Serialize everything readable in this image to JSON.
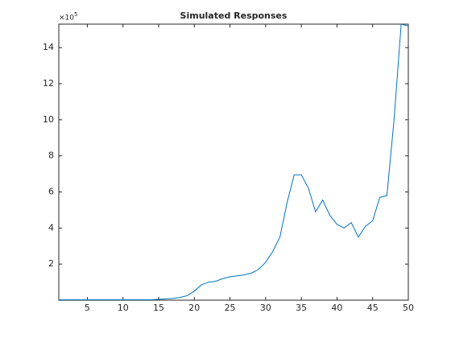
{
  "chart_data": {
    "type": "line",
    "title": "Simulated Responses",
    "exponent_base": "×10",
    "exponent": "5",
    "x": [
      1,
      2,
      3,
      4,
      5,
      6,
      7,
      8,
      9,
      10,
      11,
      12,
      13,
      14,
      15,
      16,
      17,
      18,
      19,
      20,
      21,
      22,
      23,
      24,
      25,
      26,
      27,
      28,
      29,
      30,
      31,
      32,
      33,
      34,
      35,
      36,
      37,
      38,
      39,
      40,
      41,
      42,
      43,
      44,
      45,
      46,
      47,
      48,
      49,
      50
    ],
    "series": [
      {
        "name": "Simulated Responses",
        "color": "#0072bd",
        "values": [
          0.02,
          0.02,
          0.02,
          0.02,
          0.02,
          0.02,
          0.02,
          0.02,
          0.02,
          0.02,
          0.02,
          0.02,
          0.02,
          0.02,
          0.05,
          0.07,
          0.1,
          0.15,
          0.25,
          0.5,
          0.85,
          1.0,
          1.05,
          1.2,
          1.3,
          1.35,
          1.4,
          1.5,
          1.7,
          2.1,
          2.7,
          3.5,
          5.4,
          6.95,
          6.95,
          6.2,
          4.9,
          5.55,
          4.7,
          4.2,
          4.0,
          4.3,
          3.5,
          4.1,
          4.4,
          5.7,
          5.8,
          10.0,
          15.3,
          15.2
        ]
      }
    ],
    "xlim": [
      1,
      50
    ],
    "xticks": [
      5,
      10,
      15,
      20,
      25,
      30,
      35,
      40,
      45,
      50
    ],
    "ylim": [
      0,
      15.3
    ],
    "yticks": [
      2,
      4,
      6,
      8,
      10,
      12,
      14
    ],
    "grid": false
  }
}
